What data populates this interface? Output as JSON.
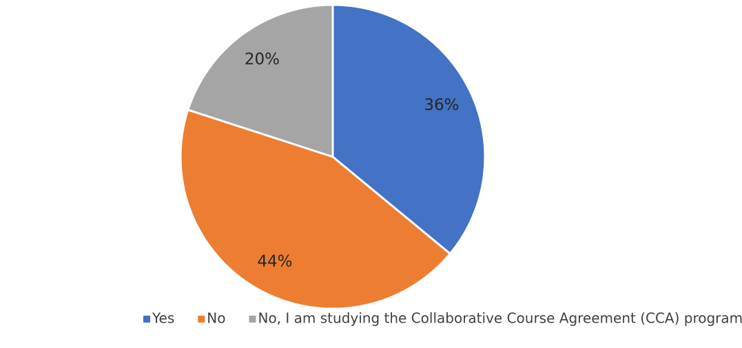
{
  "chart_data": {
    "type": "pie",
    "categories": [
      "Yes",
      "No",
      "No, I am studying the Collaborative Course Agreement (CCA) programme"
    ],
    "values": [
      36,
      44,
      20
    ],
    "value_labels": [
      "36%",
      "44%",
      "20%"
    ],
    "colors": [
      "#4472c4",
      "#ed7d31",
      "#a5a5a5"
    ],
    "legend": "bottom"
  }
}
